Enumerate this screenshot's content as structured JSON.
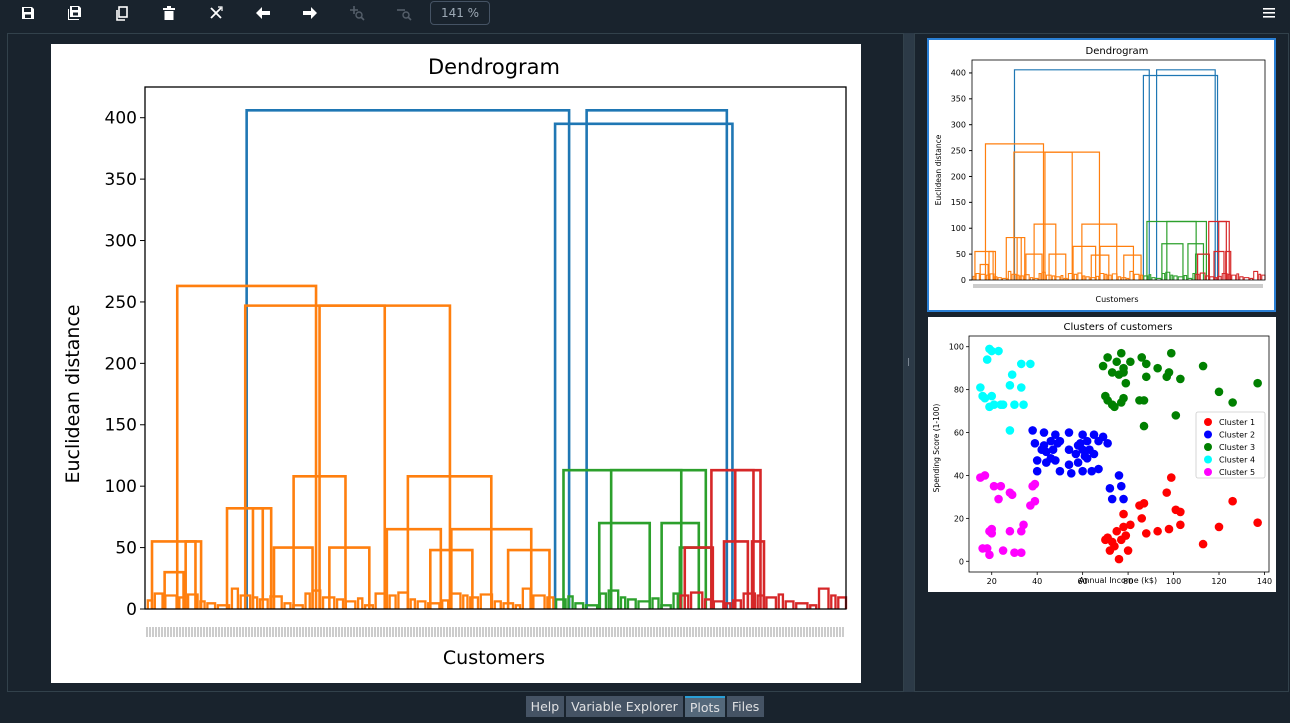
{
  "toolbar": {
    "buttons": [
      {
        "name": "save-icon",
        "label": "Save"
      },
      {
        "name": "save-all-icon",
        "label": "Save all"
      },
      {
        "name": "copy-icon",
        "label": "Copy"
      },
      {
        "name": "trash-icon",
        "label": "Remove"
      },
      {
        "name": "remove-all-icon",
        "label": "Remove all"
      },
      {
        "name": "arrow-left-icon",
        "label": "Previous"
      },
      {
        "name": "arrow-right-icon",
        "label": "Next"
      },
      {
        "name": "zoom-in-icon",
        "label": "Zoom in"
      },
      {
        "name": "zoom-out-icon",
        "label": "Zoom out"
      }
    ],
    "zoom_level": "141 %",
    "menu_icon": "hamburger-menu-icon"
  },
  "colors": {
    "accent": "#2a9fd6",
    "dendro_blue": "#1f77b4",
    "dendro_orange": "#ff7f0e",
    "dendro_green": "#2ca02c",
    "dendro_red": "#d62728"
  },
  "main_plot": {
    "title": "Dendrogram",
    "xlabel": "Customers",
    "ylabel": "Euclidean distance"
  },
  "thumb_dendrogram": {
    "title": "Dendrogram",
    "xlabel": "Customers",
    "ylabel": "Euclidean distance"
  },
  "thumb_clusters": {
    "title": "Clusters of customers",
    "xlabel": "Annual Income (k$)",
    "ylabel": "Spending Score (1-100)"
  },
  "chart_data": [
    {
      "type": "dendrogram",
      "title": "Dendrogram",
      "xlabel": "Customers",
      "ylabel": "Euclidean distance",
      "ylim": [
        0,
        425
      ],
      "yticks": [
        0,
        50,
        100,
        150,
        200,
        250,
        300,
        350,
        400
      ],
      "top_merges": [
        {
          "height": 406,
          "color": "blue",
          "joins": [
            "orange cluster",
            "green+red cluster"
          ]
        },
        {
          "height": 395,
          "color": "blue",
          "joins": [
            "green cluster",
            "red cluster"
          ]
        },
        {
          "height": 263,
          "color": "orange"
        },
        {
          "height": 247,
          "color": "orange"
        },
        {
          "height": 113,
          "color": "green"
        },
        {
          "height": 113,
          "color": "red"
        },
        {
          "height": 108,
          "color": "orange"
        }
      ]
    },
    {
      "type": "scatter",
      "title": "Clusters of customers",
      "xlabel": "Annual Income (k$)",
      "ylabel": "Spending Score (1-100)",
      "xlim": [
        10,
        142
      ],
      "ylim": [
        -5,
        105
      ],
      "xticks": [
        20,
        40,
        60,
        80,
        100,
        120,
        140
      ],
      "yticks": [
        0,
        20,
        40,
        60,
        80,
        100
      ],
      "legend_position": "center-right",
      "series": [
        {
          "name": "Cluster 1",
          "color": "#ff0000",
          "points": [
            [
              70,
              10
            ],
            [
              71,
              11
            ],
            [
              72,
              5
            ],
            [
              73,
              9
            ],
            [
              74,
              7
            ],
            [
              75,
              14
            ],
            [
              76,
              1
            ],
            [
              77,
              10
            ],
            [
              78,
              16
            ],
            [
              78,
              22
            ],
            [
              79,
              12
            ],
            [
              80,
              5
            ],
            [
              81,
              17
            ],
            [
              85,
              26
            ],
            [
              86,
              20
            ],
            [
              87,
              27
            ],
            [
              88,
              13
            ],
            [
              93,
              14
            ],
            [
              97,
              32
            ],
            [
              98,
              15
            ],
            [
              99,
              39
            ],
            [
              101,
              24
            ],
            [
              103,
              17
            ],
            [
              103,
              23
            ],
            [
              113,
              8
            ],
            [
              120,
              16
            ],
            [
              126,
              28
            ],
            [
              137,
              18
            ]
          ]
        },
        {
          "name": "Cluster 2",
          "color": "#0000ff",
          "points": [
            [
              38,
              61
            ],
            [
              39,
              55
            ],
            [
              40,
              47
            ],
            [
              40,
              42
            ],
            [
              42,
              52
            ],
            [
              43,
              54
            ],
            [
              43,
              60
            ],
            [
              44,
              46
            ],
            [
              44,
              51
            ],
            [
              46,
              56
            ],
            [
              46,
              48
            ],
            [
              47,
              52
            ],
            [
              48,
              59
            ],
            [
              48,
              47
            ],
            [
              49,
              55
            ],
            [
              50,
              56
            ],
            [
              50,
              42
            ],
            [
              54,
              52
            ],
            [
              54,
              60
            ],
            [
              54,
              45
            ],
            [
              55,
              41
            ],
            [
              57,
              50
            ],
            [
              58,
              46
            ],
            [
              58,
              54
            ],
            [
              59,
              55
            ],
            [
              60,
              42
            ],
            [
              60,
              52
            ],
            [
              60,
              59
            ],
            [
              61,
              49
            ],
            [
              62,
              56
            ],
            [
              62,
              48
            ],
            [
              63,
              52
            ],
            [
              64,
              42
            ],
            [
              65,
              50
            ],
            [
              65,
              59
            ],
            [
              67,
              43
            ],
            [
              67,
              56
            ],
            [
              69,
              58
            ],
            [
              71,
              55
            ],
            [
              72,
              34
            ],
            [
              76,
              40
            ],
            [
              77,
              35
            ],
            [
              78,
              29
            ],
            [
              73,
              29
            ]
          ]
        },
        {
          "name": "Cluster 3",
          "color": "#008000",
          "points": [
            [
              69,
              91
            ],
            [
              70,
              77
            ],
            [
              71,
              95
            ],
            [
              71,
              75
            ],
            [
              73,
              73
            ],
            [
              73,
              88
            ],
            [
              74,
              72
            ],
            [
              75,
              93
            ],
            [
              76,
              87
            ],
            [
              77,
              97
            ],
            [
              77,
              74
            ],
            [
              78,
              90
            ],
            [
              78,
              76
            ],
            [
              78,
              88
            ],
            [
              79,
              83
            ],
            [
              81,
              93
            ],
            [
              85,
              75
            ],
            [
              86,
              95
            ],
            [
              87,
              63
            ],
            [
              87,
              75
            ],
            [
              88,
              92
            ],
            [
              88,
              86
            ],
            [
              93,
              90
            ],
            [
              97,
              86
            ],
            [
              98,
              88
            ],
            [
              99,
              97
            ],
            [
              101,
              68
            ],
            [
              103,
              85
            ],
            [
              113,
              91
            ],
            [
              120,
              79
            ],
            [
              126,
              74
            ],
            [
              137,
              83
            ]
          ]
        },
        {
          "name": "Cluster 4",
          "color": "#00ffff",
          "points": [
            [
              15,
              81
            ],
            [
              16,
              77
            ],
            [
              17,
              76
            ],
            [
              18,
              94
            ],
            [
              19,
              72
            ],
            [
              19,
              99
            ],
            [
              20,
              77
            ],
            [
              20,
              98
            ],
            [
              21,
              73
            ],
            [
              23,
              98
            ],
            [
              24,
              73
            ],
            [
              25,
              73
            ],
            [
              28,
              82
            ],
            [
              28,
              61
            ],
            [
              29,
              87
            ],
            [
              30,
              73
            ],
            [
              33,
              92
            ],
            [
              33,
              81
            ],
            [
              34,
              73
            ],
            [
              37,
              92
            ]
          ]
        },
        {
          "name": "Cluster 5",
          "color": "#ff00ff",
          "points": [
            [
              15,
              39
            ],
            [
              16,
              6
            ],
            [
              17,
              40
            ],
            [
              18,
              6
            ],
            [
              19,
              3
            ],
            [
              19,
              14
            ],
            [
              20,
              15
            ],
            [
              20,
              13
            ],
            [
              21,
              35
            ],
            [
              23,
              29
            ],
            [
              24,
              35
            ],
            [
              25,
              5
            ],
            [
              28,
              14
            ],
            [
              28,
              32
            ],
            [
              29,
              31
            ],
            [
              30,
              4
            ],
            [
              33,
              4
            ],
            [
              33,
              14
            ],
            [
              34,
              17
            ],
            [
              37,
              26
            ],
            [
              38,
              35
            ],
            [
              39,
              36
            ],
            [
              39,
              28
            ]
          ]
        }
      ]
    }
  ],
  "tabs": [
    {
      "label": "Help",
      "active": false
    },
    {
      "label": "Variable Explorer",
      "active": false
    },
    {
      "label": "Plots",
      "active": true
    },
    {
      "label": "Files",
      "active": false
    }
  ]
}
